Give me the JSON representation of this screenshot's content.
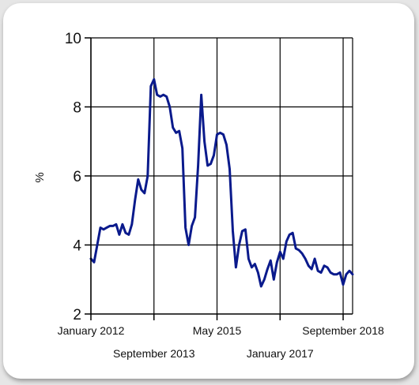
{
  "chart_data": {
    "type": "line",
    "title": "",
    "xlabel": "",
    "ylabel": "%",
    "ylim": [
      2,
      10
    ],
    "yticks": [
      2,
      4,
      6,
      8,
      10
    ],
    "grid": true,
    "legend": "none",
    "x_tick_labels": [
      "January 2012",
      "September 2013",
      "May 2015",
      "January 2017",
      "September 2018"
    ],
    "x_tick_dates": [
      "2012-01",
      "2013-09",
      "2015-05",
      "2017-01",
      "2018-09"
    ],
    "series": [
      {
        "color": "#0a1a8c",
        "points": [
          [
            "2012-01",
            3.6
          ],
          [
            "2012-02",
            3.5
          ],
          [
            "2012-04",
            4.5
          ],
          [
            "2012-05",
            4.45
          ],
          [
            "2012-06",
            4.5
          ],
          [
            "2012-07",
            4.55
          ],
          [
            "2012-08",
            4.55
          ],
          [
            "2012-09",
            4.6
          ],
          [
            "2012-10",
            4.3
          ],
          [
            "2012-11",
            4.6
          ],
          [
            "2012-12",
            4.35
          ],
          [
            "2013-01",
            4.3
          ],
          [
            "2013-02",
            4.6
          ],
          [
            "2013-03",
            5.3
          ],
          [
            "2013-04",
            5.9
          ],
          [
            "2013-05",
            5.6
          ],
          [
            "2013-06",
            5.5
          ],
          [
            "2013-07",
            6.0
          ],
          [
            "2013-08",
            8.6
          ],
          [
            "2013-09",
            8.8
          ],
          [
            "2013-10",
            8.35
          ],
          [
            "2013-11",
            8.3
          ],
          [
            "2013-12",
            8.35
          ],
          [
            "2014-01",
            8.3
          ],
          [
            "2014-02",
            8.0
          ],
          [
            "2014-03",
            7.4
          ],
          [
            "2014-04",
            7.25
          ],
          [
            "2014-05",
            7.3
          ],
          [
            "2014-06",
            6.8
          ],
          [
            "2014-07",
            4.5
          ],
          [
            "2014-08",
            4.0
          ],
          [
            "2014-09",
            4.55
          ],
          [
            "2014-10",
            4.8
          ],
          [
            "2014-11",
            6.3
          ],
          [
            "2014-12",
            8.35
          ],
          [
            "2015-01",
            7.0
          ],
          [
            "2015-02",
            6.3
          ],
          [
            "2015-03",
            6.35
          ],
          [
            "2015-04",
            6.6
          ],
          [
            "2015-05",
            7.2
          ],
          [
            "2015-06",
            7.25
          ],
          [
            "2015-07",
            7.2
          ],
          [
            "2015-08",
            6.9
          ],
          [
            "2015-09",
            6.2
          ],
          [
            "2015-10",
            4.4
          ],
          [
            "2015-11",
            3.35
          ],
          [
            "2015-12",
            4.0
          ],
          [
            "2016-01",
            4.4
          ],
          [
            "2016-02",
            4.45
          ],
          [
            "2016-03",
            3.6
          ],
          [
            "2016-04",
            3.35
          ],
          [
            "2016-05",
            3.45
          ],
          [
            "2016-06",
            3.2
          ],
          [
            "2016-07",
            2.8
          ],
          [
            "2016-08",
            3.0
          ],
          [
            "2016-09",
            3.3
          ],
          [
            "2016-10",
            3.55
          ],
          [
            "2016-11",
            3.0
          ],
          [
            "2016-12",
            3.5
          ],
          [
            "2017-01",
            3.8
          ],
          [
            "2017-02",
            3.6
          ],
          [
            "2017-03",
            4.1
          ],
          [
            "2017-04",
            4.3
          ],
          [
            "2017-05",
            4.35
          ],
          [
            "2017-06",
            3.9
          ],
          [
            "2017-07",
            3.85
          ],
          [
            "2017-08",
            3.75
          ],
          [
            "2017-09",
            3.6
          ],
          [
            "2017-10",
            3.4
          ],
          [
            "2017-11",
            3.3
          ],
          [
            "2017-12",
            3.6
          ],
          [
            "2018-01",
            3.25
          ],
          [
            "2018-02",
            3.2
          ],
          [
            "2018-03",
            3.4
          ],
          [
            "2018-04",
            3.35
          ],
          [
            "2018-05",
            3.2
          ],
          [
            "2018-06",
            3.15
          ],
          [
            "2018-07",
            3.15
          ],
          [
            "2018-08",
            3.2
          ],
          [
            "2018-09",
            2.85
          ],
          [
            "2018-10",
            3.15
          ],
          [
            "2018-11",
            3.25
          ],
          [
            "2018-12",
            3.15
          ]
        ]
      }
    ]
  }
}
